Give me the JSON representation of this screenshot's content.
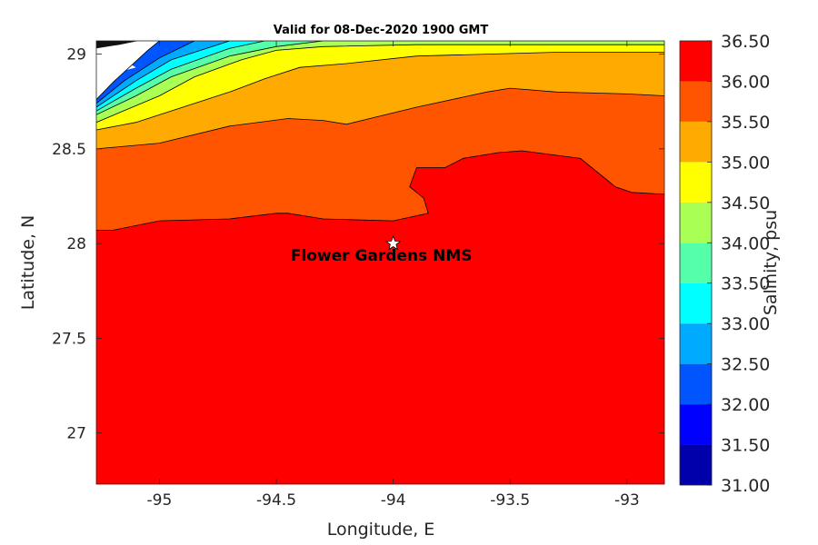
{
  "chart_data": {
    "type": "heatmap",
    "title": "Valid for 08-Dec-2020 1900 GMT",
    "xlabel": "Longitude, E",
    "ylabel": "Latitude, N",
    "xlim": [
      -95.27,
      -92.84
    ],
    "ylim": [
      26.73,
      29.07
    ],
    "xticks": [
      -95,
      -94.5,
      -94,
      -93.5,
      -93
    ],
    "xtick_labels": [
      "-95",
      "-94.5",
      "-94",
      "-93.5",
      "-93"
    ],
    "yticks": [
      27,
      27.5,
      28,
      28.5,
      29
    ],
    "ytick_labels": [
      "27",
      "27.5",
      "28",
      "28.5",
      "29"
    ],
    "marker": {
      "lon": -94.0,
      "lat": 28.0,
      "symbol": "star",
      "label": "Flower Gardens NMS"
    },
    "colorbar": {
      "label": "Salinity, psu",
      "range": [
        31.0,
        36.5
      ],
      "tick_values": [
        31.0,
        31.5,
        32.0,
        32.5,
        33.0,
        33.5,
        34.0,
        34.5,
        35.0,
        35.5,
        36.0,
        36.5
      ],
      "tick_labels": [
        "31.00",
        "31.50",
        "32.00",
        "32.50",
        "33.00",
        "33.50",
        "34.00",
        "34.50",
        "35.00",
        "35.50",
        "36.00",
        "36.50"
      ],
      "levels": [
        {
          "from": 31.0,
          "to": 31.5,
          "color": "#0000aa"
        },
        {
          "from": 31.5,
          "to": 32.0,
          "color": "#0000ff"
        },
        {
          "from": 32.0,
          "to": 32.5,
          "color": "#0055ff"
        },
        {
          "from": 32.5,
          "to": 33.0,
          "color": "#00aaff"
        },
        {
          "from": 33.0,
          "to": 33.5,
          "color": "#00ffff"
        },
        {
          "from": 33.5,
          "to": 34.0,
          "color": "#55ffaa"
        },
        {
          "from": 34.0,
          "to": 34.5,
          "color": "#aaff55"
        },
        {
          "from": 34.5,
          "to": 35.0,
          "color": "#ffff00"
        },
        {
          "from": 35.0,
          "to": 35.5,
          "color": "#ffaa00"
        },
        {
          "from": 35.5,
          "to": 36.0,
          "color": "#ff5500"
        },
        {
          "from": 36.0,
          "to": 36.5,
          "color": "#ff0000"
        }
      ]
    },
    "contour_bands": [
      {
        "name": "band-36-36.5",
        "color": "#ff0000",
        "boundary": [
          [
            -95.27,
            28.07
          ],
          [
            -95.2,
            28.07
          ],
          [
            -95.0,
            28.12
          ],
          [
            -94.7,
            28.13
          ],
          [
            -94.5,
            28.16
          ],
          [
            -94.45,
            28.16
          ],
          [
            -94.3,
            28.13
          ],
          [
            -94.0,
            28.12
          ],
          [
            -93.85,
            28.16
          ],
          [
            -93.87,
            28.24
          ],
          [
            -93.93,
            28.3
          ],
          [
            -93.9,
            28.4
          ],
          [
            -93.78,
            28.4
          ],
          [
            -93.7,
            28.45
          ],
          [
            -93.55,
            28.48
          ],
          [
            -93.45,
            28.49
          ],
          [
            -93.2,
            28.45
          ],
          [
            -93.05,
            28.3
          ],
          [
            -92.98,
            28.27
          ],
          [
            -92.84,
            28.26
          ]
        ]
      },
      {
        "name": "band-35.5-36",
        "color": "#ff5500",
        "boundary": [
          [
            -95.27,
            28.5
          ],
          [
            -95.0,
            28.53
          ],
          [
            -94.7,
            28.62
          ],
          [
            -94.45,
            28.66
          ],
          [
            -94.3,
            28.65
          ],
          [
            -94.2,
            28.63
          ],
          [
            -94.1,
            28.66
          ],
          [
            -93.9,
            28.72
          ],
          [
            -93.6,
            28.8
          ],
          [
            -93.5,
            28.82
          ],
          [
            -93.3,
            28.8
          ],
          [
            -93.0,
            28.79
          ],
          [
            -92.84,
            28.78
          ]
        ]
      },
      {
        "name": "band-35-35.5",
        "color": "#ffaa00",
        "boundary": [
          [
            -95.27,
            28.6
          ],
          [
            -95.1,
            28.64
          ],
          [
            -94.9,
            28.72
          ],
          [
            -94.7,
            28.8
          ],
          [
            -94.55,
            28.87
          ],
          [
            -94.4,
            28.93
          ],
          [
            -94.2,
            28.95
          ],
          [
            -93.9,
            28.99
          ],
          [
            -93.6,
            29.0
          ],
          [
            -93.3,
            29.01
          ],
          [
            -92.84,
            29.01
          ]
        ]
      },
      {
        "name": "band-34.5-35",
        "color": "#ffff00",
        "boundary": [
          [
            -95.27,
            28.64
          ],
          [
            -95.0,
            28.78
          ],
          [
            -94.85,
            28.88
          ],
          [
            -94.65,
            28.97
          ],
          [
            -94.5,
            29.02
          ],
          [
            -94.3,
            29.04
          ],
          [
            -93.9,
            29.05
          ],
          [
            -92.84,
            29.05
          ]
        ]
      },
      {
        "name": "band-34-34.5",
        "color": "#aaff55",
        "boundary": [
          [
            -95.27,
            28.68
          ],
          [
            -95.1,
            28.78
          ],
          [
            -94.95,
            28.88
          ],
          [
            -94.7,
            28.99
          ],
          [
            -94.5,
            29.04
          ],
          [
            -94.3,
            29.07
          ]
        ]
      },
      {
        "name": "band-33.5-34",
        "color": "#55ffaa",
        "boundary": [
          [
            -95.27,
            28.7
          ],
          [
            -95.1,
            28.82
          ],
          [
            -94.95,
            28.92
          ],
          [
            -94.7,
            29.03
          ],
          [
            -94.55,
            29.07
          ]
        ]
      },
      {
        "name": "band-33-33.5",
        "color": "#00ffff",
        "boundary": [
          [
            -95.27,
            28.72
          ],
          [
            -95.1,
            28.86
          ],
          [
            -94.95,
            28.97
          ],
          [
            -94.75,
            29.05
          ],
          [
            -94.7,
            29.07
          ]
        ]
      },
      {
        "name": "band-32.5-33",
        "color": "#00aaff",
        "boundary": [
          [
            -95.27,
            28.74
          ],
          [
            -95.15,
            28.86
          ],
          [
            -95.0,
            28.98
          ],
          [
            -94.85,
            29.07
          ]
        ]
      },
      {
        "name": "band-32-32.5",
        "color": "#0055ff",
        "boundary": [
          [
            -95.27,
            28.76
          ],
          [
            -95.2,
            28.85
          ],
          [
            -95.05,
            29.02
          ],
          [
            -95.0,
            29.07
          ]
        ]
      }
    ],
    "land_areas": [
      {
        "name": "land-north-coast",
        "boundary": [
          [
            -95.27,
            28.76
          ],
          [
            -95.2,
            28.85
          ],
          [
            -95.05,
            29.02
          ],
          [
            -95.0,
            29.07
          ],
          [
            -95.27,
            29.07
          ]
        ]
      }
    ],
    "land_islands": [
      {
        "name": "land-island",
        "boundary": [
          [
            -95.22,
            28.99
          ],
          [
            -95.16,
            28.91
          ],
          [
            -95.1,
            28.93
          ],
          [
            -95.2,
            29.0
          ]
        ]
      }
    ],
    "land_hatch": {
      "name": "land-shoreline-hatch",
      "boundary": [
        [
          -95.27,
          29.03
        ],
        [
          -95.17,
          29.05
        ],
        [
          -95.09,
          29.07
        ],
        [
          -95.27,
          29.07
        ]
      ]
    }
  }
}
